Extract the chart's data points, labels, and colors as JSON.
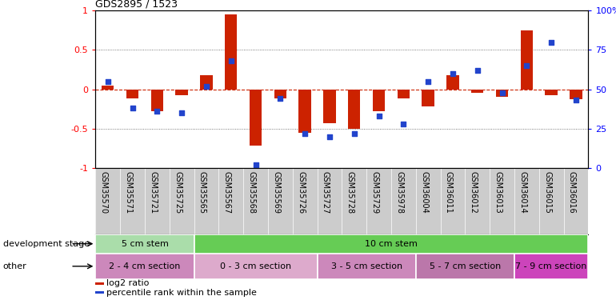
{
  "title": "GDS2895 / 1523",
  "samples": [
    "GSM35570",
    "GSM35571",
    "GSM35721",
    "GSM35725",
    "GSM35565",
    "GSM35567",
    "GSM35568",
    "GSM35569",
    "GSM35726",
    "GSM35727",
    "GSM35728",
    "GSM35729",
    "GSM35978",
    "GSM36004",
    "GSM36011",
    "GSM36012",
    "GSM36013",
    "GSM36014",
    "GSM36015",
    "GSM36016"
  ],
  "log2_ratio": [
    0.05,
    -0.12,
    -0.28,
    -0.08,
    0.18,
    0.95,
    -0.72,
    -0.12,
    -0.55,
    -0.43,
    -0.5,
    -0.28,
    -0.12,
    -0.22,
    0.18,
    -0.05,
    -0.1,
    0.75,
    -0.08,
    -0.13
  ],
  "percentile": [
    55,
    38,
    36,
    35,
    52,
    68,
    2,
    44,
    22,
    20,
    22,
    33,
    28,
    55,
    60,
    62,
    48,
    65,
    80,
    43
  ],
  "bar_color": "#cc2200",
  "dot_color": "#2244cc",
  "bg_color": "#ffffff",
  "tick_bg_color": "#cccccc",
  "left_ylim": [
    -1,
    1
  ],
  "right_ylim": [
    0,
    100
  ],
  "left_yticks": [
    -1,
    -0.5,
    0,
    0.5,
    1
  ],
  "left_yticklabels": [
    "-1",
    "-0.5",
    "0",
    "0.5",
    "1"
  ],
  "right_yticks": [
    0,
    25,
    50,
    75,
    100
  ],
  "right_yticklabels": [
    "0",
    "25",
    "50",
    "75",
    "100%"
  ],
  "hline_color": "#cc2200",
  "dotted_color": "#555555",
  "development_stage_groups": [
    {
      "label": "5 cm stem",
      "start": 0,
      "end": 3,
      "color": "#aaddaa"
    },
    {
      "label": "10 cm stem",
      "start": 4,
      "end": 19,
      "color": "#66cc55"
    }
  ],
  "other_groups": [
    {
      "label": "2 - 4 cm section",
      "start": 0,
      "end": 3,
      "color": "#cc88bb"
    },
    {
      "label": "0 - 3 cm section",
      "start": 4,
      "end": 8,
      "color": "#ddaacc"
    },
    {
      "label": "3 - 5 cm section",
      "start": 9,
      "end": 12,
      "color": "#cc88bb"
    },
    {
      "label": "5 - 7 cm section",
      "start": 13,
      "end": 16,
      "color": "#bb77aa"
    },
    {
      "label": "7 - 9 cm section",
      "start": 17,
      "end": 19,
      "color": "#cc44bb"
    }
  ],
  "legend_items": [
    {
      "label": "log2 ratio",
      "color": "#cc2200"
    },
    {
      "label": "percentile rank within the sample",
      "color": "#2244cc"
    }
  ],
  "dev_stage_label": "development stage",
  "other_label": "other",
  "tick_labelsize": 7,
  "bar_width": 0.5
}
